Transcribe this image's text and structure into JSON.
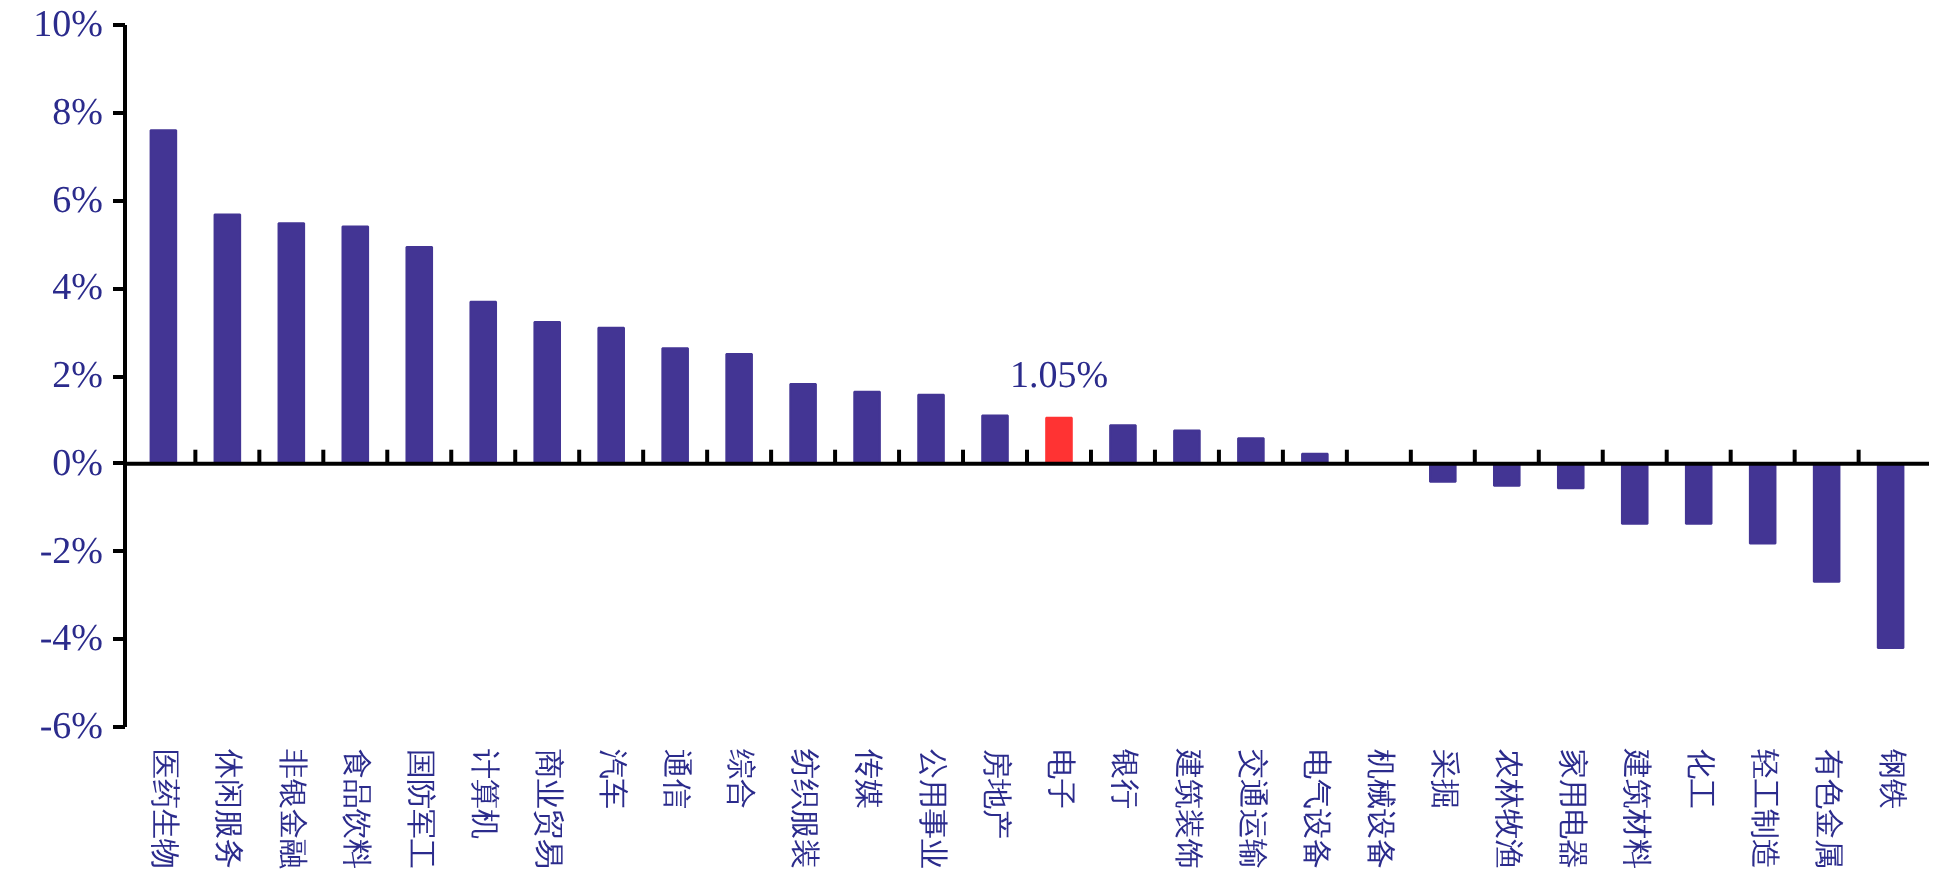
{
  "chart_data": {
    "type": "bar",
    "categories": [
      "医药生物",
      "休闲服务",
      "非银金融",
      "食品饮料",
      "国防军工",
      "计算机",
      "商业贸易",
      "汽车",
      "通信",
      "综合",
      "纺织服装",
      "传媒",
      "公用事业",
      "房地产",
      "电子",
      "银行",
      "建筑装饰",
      "交通运输",
      "电气设备",
      "机械设备",
      "采掘",
      "农林牧渔",
      "家用电器",
      "建筑材料",
      "化工",
      "轻工制造",
      "有色金属",
      "钢铁"
    ],
    "values": [
      7.6,
      5.68,
      5.48,
      5.41,
      4.94,
      3.69,
      3.23,
      3.1,
      2.63,
      2.5,
      1.82,
      1.64,
      1.57,
      1.1,
      1.05,
      0.88,
      0.76,
      0.58,
      0.23,
      0,
      -0.41,
      -0.5,
      -0.56,
      -1.37,
      -1.37,
      -1.82,
      -2.69,
      -4.2
    ],
    "colors": [
      "#433594",
      "#433594",
      "#433594",
      "#433594",
      "#433594",
      "#433594",
      "#433594",
      "#433594",
      "#433594",
      "#433594",
      "#433594",
      "#433594",
      "#433594",
      "#433594",
      "#ff3333",
      "#433594",
      "#433594",
      "#433594",
      "#433594",
      "#433594",
      "#433594",
      "#433594",
      "#433594",
      "#433594",
      "#433594",
      "#433594",
      "#433594",
      "#433594"
    ],
    "value_labels": [
      null,
      null,
      null,
      null,
      null,
      null,
      null,
      null,
      null,
      null,
      null,
      null,
      null,
      null,
      "1.05%",
      null,
      null,
      null,
      null,
      null,
      null,
      null,
      null,
      null,
      null,
      null,
      null,
      null
    ],
    "ylim": [
      -6,
      10
    ],
    "yticks": [
      {
        "value": -6,
        "label": "-6%"
      },
      {
        "value": -4,
        "label": "-4%"
      },
      {
        "value": -2,
        "label": "-2%"
      },
      {
        "value": 0,
        "label": "0%"
      },
      {
        "value": 2,
        "label": "2%"
      },
      {
        "value": 4,
        "label": "4%"
      },
      {
        "value": 6,
        "label": "6%"
      },
      {
        "value": 8,
        "label": "8%"
      },
      {
        "value": 10,
        "label": "10%"
      }
    ]
  }
}
